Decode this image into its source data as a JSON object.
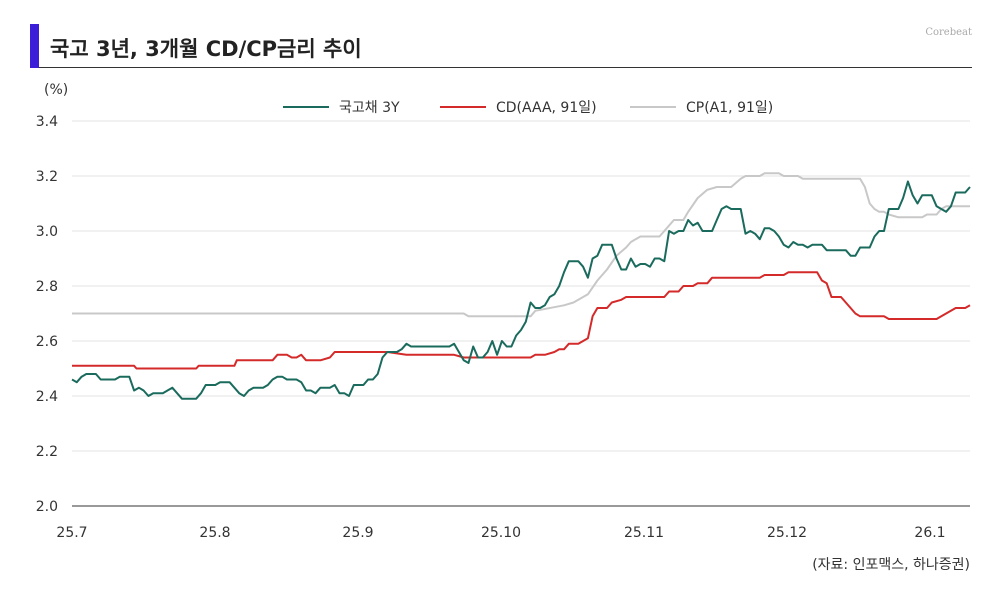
{
  "header": {
    "title": "국고 3년, 3개월 CD/CP금리 추이",
    "brand": "Corebeat",
    "accent_color": "#3b1fd8"
  },
  "source": "(자료: 인포맥스, 하나증권)",
  "chart_data": {
    "type": "line",
    "title": "국고 3년, 3개월 CD/CP금리 추이",
    "ylabel": "(%)",
    "xlabel": "",
    "ylim": [
      2.0,
      3.4
    ],
    "yticks": [
      "2.0",
      "2.2",
      "2.4",
      "2.6",
      "2.8",
      "3.0",
      "3.2",
      "3.4"
    ],
    "xticks": [
      "25.7",
      "25.8",
      "25.9",
      "25.10",
      "25.11",
      "25.12",
      "26.1"
    ],
    "grid": "horizontal",
    "legend": "top-center",
    "series": [
      {
        "name": "국고채 3Y",
        "color": "#1a6b5d",
        "points": [
          [
            0,
            2.46
          ],
          [
            2,
            2.45
          ],
          [
            4,
            2.47
          ],
          [
            6,
            2.48
          ],
          [
            8,
            2.48
          ],
          [
            10,
            2.48
          ],
          [
            12,
            2.46
          ],
          [
            14,
            2.46
          ],
          [
            16,
            2.46
          ],
          [
            18,
            2.46
          ],
          [
            20,
            2.47
          ],
          [
            22,
            2.47
          ],
          [
            24,
            2.47
          ],
          [
            26,
            2.42
          ],
          [
            28,
            2.43
          ],
          [
            30,
            2.42
          ],
          [
            32,
            2.4
          ],
          [
            34,
            2.41
          ],
          [
            36,
            2.41
          ],
          [
            38,
            2.41
          ],
          [
            40,
            2.42
          ],
          [
            42,
            2.43
          ],
          [
            44,
            2.41
          ],
          [
            46,
            2.39
          ],
          [
            48,
            2.39
          ],
          [
            50,
            2.39
          ],
          [
            52,
            2.39
          ],
          [
            54,
            2.41
          ],
          [
            56,
            2.44
          ],
          [
            58,
            2.44
          ],
          [
            60,
            2.44
          ],
          [
            62,
            2.45
          ],
          [
            64,
            2.45
          ],
          [
            66,
            2.45
          ],
          [
            68,
            2.43
          ],
          [
            70,
            2.41
          ],
          [
            72,
            2.4
          ],
          [
            74,
            2.42
          ],
          [
            76,
            2.43
          ],
          [
            78,
            2.43
          ],
          [
            80,
            2.43
          ],
          [
            82,
            2.44
          ],
          [
            84,
            2.46
          ],
          [
            86,
            2.47
          ],
          [
            88,
            2.47
          ],
          [
            90,
            2.46
          ],
          [
            92,
            2.46
          ],
          [
            94,
            2.46
          ],
          [
            96,
            2.45
          ],
          [
            98,
            2.42
          ],
          [
            100,
            2.42
          ],
          [
            102,
            2.41
          ],
          [
            104,
            2.43
          ],
          [
            106,
            2.43
          ],
          [
            108,
            2.43
          ],
          [
            110,
            2.44
          ],
          [
            112,
            2.41
          ],
          [
            114,
            2.41
          ],
          [
            116,
            2.4
          ],
          [
            118,
            2.44
          ],
          [
            120,
            2.44
          ],
          [
            122,
            2.44
          ],
          [
            124,
            2.46
          ],
          [
            126,
            2.46
          ],
          [
            128,
            2.48
          ],
          [
            130,
            2.54
          ],
          [
            132,
            2.56
          ],
          [
            134,
            2.56
          ],
          [
            136,
            2.56
          ],
          [
            138,
            2.57
          ],
          [
            140,
            2.59
          ],
          [
            142,
            2.58
          ],
          [
            144,
            2.58
          ],
          [
            146,
            2.58
          ],
          [
            148,
            2.58
          ],
          [
            150,
            2.58
          ],
          [
            152,
            2.58
          ],
          [
            154,
            2.58
          ],
          [
            156,
            2.58
          ],
          [
            158,
            2.58
          ],
          [
            160,
            2.59
          ],
          [
            162,
            2.56
          ],
          [
            164,
            2.53
          ],
          [
            166,
            2.52
          ],
          [
            168,
            2.58
          ],
          [
            170,
            2.54
          ],
          [
            172,
            2.54
          ],
          [
            174,
            2.56
          ],
          [
            176,
            2.6
          ],
          [
            178,
            2.55
          ],
          [
            180,
            2.6
          ],
          [
            182,
            2.58
          ],
          [
            184,
            2.58
          ],
          [
            186,
            2.62
          ],
          [
            188,
            2.64
          ],
          [
            190,
            2.67
          ],
          [
            192,
            2.74
          ],
          [
            194,
            2.72
          ],
          [
            196,
            2.72
          ],
          [
            198,
            2.73
          ],
          [
            200,
            2.76
          ],
          [
            202,
            2.77
          ],
          [
            204,
            2.8
          ],
          [
            206,
            2.85
          ],
          [
            208,
            2.89
          ],
          [
            210,
            2.89
          ],
          [
            212,
            2.89
          ],
          [
            214,
            2.87
          ],
          [
            216,
            2.83
          ],
          [
            218,
            2.9
          ],
          [
            220,
            2.91
          ],
          [
            222,
            2.95
          ],
          [
            224,
            2.95
          ],
          [
            226,
            2.95
          ],
          [
            228,
            2.9
          ],
          [
            230,
            2.86
          ],
          [
            232,
            2.86
          ],
          [
            234,
            2.9
          ],
          [
            236,
            2.87
          ],
          [
            238,
            2.88
          ],
          [
            240,
            2.88
          ],
          [
            242,
            2.87
          ],
          [
            244,
            2.9
          ],
          [
            246,
            2.9
          ],
          [
            248,
            2.89
          ],
          [
            250,
            3.0
          ],
          [
            252,
            2.99
          ],
          [
            254,
            3.0
          ],
          [
            256,
            3.0
          ],
          [
            258,
            3.04
          ],
          [
            260,
            3.02
          ],
          [
            262,
            3.03
          ],
          [
            264,
            3.0
          ],
          [
            266,
            3.0
          ],
          [
            268,
            3.0
          ],
          [
            270,
            3.04
          ],
          [
            272,
            3.08
          ],
          [
            274,
            3.09
          ],
          [
            276,
            3.08
          ],
          [
            278,
            3.08
          ],
          [
            280,
            3.08
          ],
          [
            282,
            2.99
          ],
          [
            284,
            3.0
          ],
          [
            286,
            2.99
          ],
          [
            288,
            2.97
          ],
          [
            290,
            3.01
          ],
          [
            292,
            3.01
          ],
          [
            294,
            3.0
          ],
          [
            296,
            2.98
          ],
          [
            298,
            2.95
          ],
          [
            300,
            2.94
          ],
          [
            302,
            2.96
          ],
          [
            304,
            2.95
          ],
          [
            306,
            2.95
          ],
          [
            308,
            2.94
          ],
          [
            310,
            2.95
          ],
          [
            312,
            2.95
          ],
          [
            314,
            2.95
          ],
          [
            316,
            2.93
          ],
          [
            318,
            2.93
          ],
          [
            320,
            2.93
          ],
          [
            322,
            2.93
          ],
          [
            324,
            2.93
          ],
          [
            326,
            2.91
          ],
          [
            328,
            2.91
          ],
          [
            330,
            2.94
          ],
          [
            332,
            2.94
          ],
          [
            334,
            2.94
          ],
          [
            336,
            2.98
          ],
          [
            338,
            3.0
          ],
          [
            340,
            3.0
          ],
          [
            342,
            3.08
          ],
          [
            344,
            3.08
          ],
          [
            346,
            3.08
          ],
          [
            348,
            3.12
          ],
          [
            350,
            3.18
          ],
          [
            352,
            3.13
          ],
          [
            354,
            3.1
          ],
          [
            356,
            3.13
          ],
          [
            358,
            3.13
          ],
          [
            360,
            3.13
          ],
          [
            362,
            3.09
          ],
          [
            364,
            3.08
          ],
          [
            366,
            3.07
          ],
          [
            368,
            3.09
          ],
          [
            370,
            3.14
          ],
          [
            372,
            3.14
          ],
          [
            374,
            3.14
          ],
          [
            376,
            3.16
          ]
        ]
      },
      {
        "name": "CD(AAA, 91일)",
        "color": "#d42a2a",
        "points": [
          [
            0,
            2.51
          ],
          [
            20,
            2.51
          ],
          [
            26,
            2.51
          ],
          [
            27,
            2.5
          ],
          [
            52,
            2.5
          ],
          [
            53,
            2.51
          ],
          [
            68,
            2.51
          ],
          [
            69,
            2.53
          ],
          [
            84,
            2.53
          ],
          [
            86,
            2.55
          ],
          [
            90,
            2.55
          ],
          [
            92,
            2.54
          ],
          [
            94,
            2.54
          ],
          [
            96,
            2.55
          ],
          [
            98,
            2.53
          ],
          [
            104,
            2.53
          ],
          [
            108,
            2.54
          ],
          [
            110,
            2.56
          ],
          [
            128,
            2.56
          ],
          [
            132,
            2.56
          ],
          [
            140,
            2.55
          ],
          [
            156,
            2.55
          ],
          [
            160,
            2.55
          ],
          [
            164,
            2.54
          ],
          [
            190,
            2.54
          ],
          [
            192,
            2.54
          ],
          [
            194,
            2.55
          ],
          [
            198,
            2.55
          ],
          [
            202,
            2.56
          ],
          [
            204,
            2.57
          ],
          [
            206,
            2.57
          ],
          [
            208,
            2.59
          ],
          [
            212,
            2.59
          ],
          [
            214,
            2.6
          ],
          [
            216,
            2.61
          ],
          [
            218,
            2.69
          ],
          [
            220,
            2.72
          ],
          [
            224,
            2.72
          ],
          [
            226,
            2.74
          ],
          [
            230,
            2.75
          ],
          [
            232,
            2.76
          ],
          [
            246,
            2.76
          ],
          [
            248,
            2.76
          ],
          [
            250,
            2.78
          ],
          [
            254,
            2.78
          ],
          [
            256,
            2.8
          ],
          [
            260,
            2.8
          ],
          [
            262,
            2.81
          ],
          [
            266,
            2.81
          ],
          [
            268,
            2.83
          ],
          [
            288,
            2.83
          ],
          [
            290,
            2.84
          ],
          [
            298,
            2.84
          ],
          [
            300,
            2.85
          ],
          [
            312,
            2.85
          ],
          [
            314,
            2.82
          ],
          [
            316,
            2.81
          ],
          [
            318,
            2.76
          ],
          [
            322,
            2.76
          ],
          [
            324,
            2.74
          ],
          [
            326,
            2.72
          ],
          [
            328,
            2.7
          ],
          [
            330,
            2.69
          ],
          [
            340,
            2.69
          ],
          [
            342,
            2.68
          ],
          [
            362,
            2.68
          ],
          [
            364,
            2.69
          ],
          [
            366,
            2.7
          ],
          [
            368,
            2.71
          ],
          [
            370,
            2.72
          ],
          [
            374,
            2.72
          ],
          [
            376,
            2.73
          ]
        ]
      },
      {
        "name": "CP(A1, 91일)",
        "color": "#c8c8c8",
        "points": [
          [
            0,
            2.7
          ],
          [
            164,
            2.7
          ],
          [
            166,
            2.69
          ],
          [
            192,
            2.69
          ],
          [
            194,
            2.71
          ],
          [
            206,
            2.73
          ],
          [
            210,
            2.74
          ],
          [
            216,
            2.77
          ],
          [
            220,
            2.82
          ],
          [
            224,
            2.86
          ],
          [
            228,
            2.91
          ],
          [
            232,
            2.94
          ],
          [
            234,
            2.96
          ],
          [
            236,
            2.97
          ],
          [
            238,
            2.98
          ],
          [
            246,
            2.98
          ],
          [
            248,
            3.0
          ],
          [
            250,
            3.02
          ],
          [
            252,
            3.04
          ],
          [
            256,
            3.04
          ],
          [
            258,
            3.07
          ],
          [
            262,
            3.12
          ],
          [
            266,
            3.15
          ],
          [
            270,
            3.16
          ],
          [
            276,
            3.16
          ],
          [
            280,
            3.19
          ],
          [
            282,
            3.2
          ],
          [
            288,
            3.2
          ],
          [
            290,
            3.21
          ],
          [
            296,
            3.21
          ],
          [
            298,
            3.2
          ],
          [
            304,
            3.2
          ],
          [
            306,
            3.19
          ],
          [
            330,
            3.19
          ],
          [
            332,
            3.16
          ],
          [
            334,
            3.1
          ],
          [
            336,
            3.08
          ],
          [
            338,
            3.07
          ],
          [
            340,
            3.07
          ],
          [
            342,
            3.06
          ],
          [
            346,
            3.05
          ],
          [
            356,
            3.05
          ],
          [
            358,
            3.06
          ],
          [
            362,
            3.06
          ],
          [
            364,
            3.08
          ],
          [
            366,
            3.09
          ],
          [
            376,
            3.09
          ]
        ]
      }
    ]
  }
}
